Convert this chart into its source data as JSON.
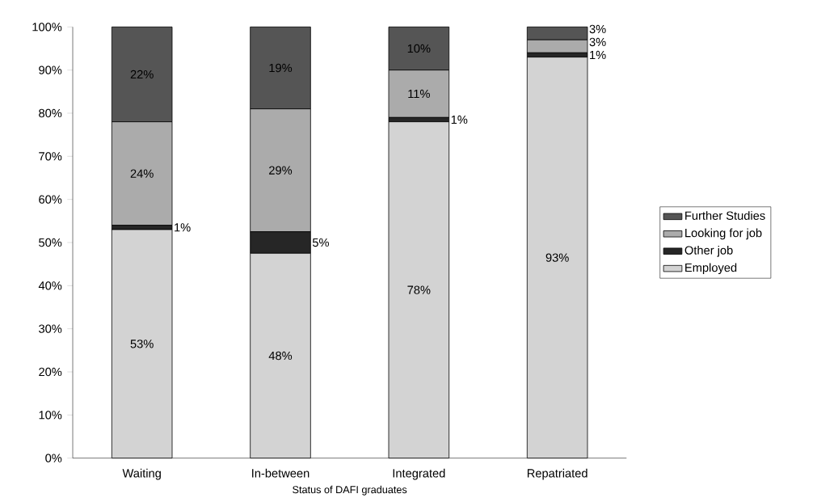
{
  "chart_data": {
    "type": "bar",
    "stacked": true,
    "xlabel": "Status of DAFI graduates",
    "categories": [
      "Waiting",
      "In-between",
      "Integrated",
      "Repatriated"
    ],
    "series": [
      {
        "name": "Employed",
        "color": "#d3d3d3",
        "values": [
          53,
          47.5,
          78,
          93
        ],
        "value_labels": [
          "53%",
          "48%",
          "78%",
          "93%"
        ]
      },
      {
        "name": "Other job",
        "color": "#262626",
        "values": [
          1,
          5,
          1,
          1
        ],
        "value_labels": [
          "1%",
          "5%",
          "1%",
          "1%"
        ]
      },
      {
        "name": "Looking for job",
        "color": "#ababab",
        "values": [
          24,
          28.5,
          11,
          3
        ],
        "value_labels": [
          "24%",
          "29%",
          "11%",
          "3%"
        ]
      },
      {
        "name": "Further Studies",
        "color": "#555555",
        "values": [
          22,
          19,
          10,
          3
        ],
        "value_labels": [
          "22%",
          "19%",
          "10%",
          "3%"
        ]
      }
    ],
    "ylim": [
      0,
      100
    ],
    "yticks": [
      {
        "value": 0,
        "label": "0%"
      },
      {
        "value": 10,
        "label": "10%"
      },
      {
        "value": 20,
        "label": "20%"
      },
      {
        "value": 30,
        "label": "30%"
      },
      {
        "value": 40,
        "label": "40%"
      },
      {
        "value": 50,
        "label": "50%"
      },
      {
        "value": 60,
        "label": "60%"
      },
      {
        "value": 70,
        "label": "70%"
      },
      {
        "value": 80,
        "label": "80%"
      },
      {
        "value": 90,
        "label": "90%"
      },
      {
        "value": 100,
        "label": "100%"
      }
    ],
    "grid": false,
    "legend": "right"
  }
}
